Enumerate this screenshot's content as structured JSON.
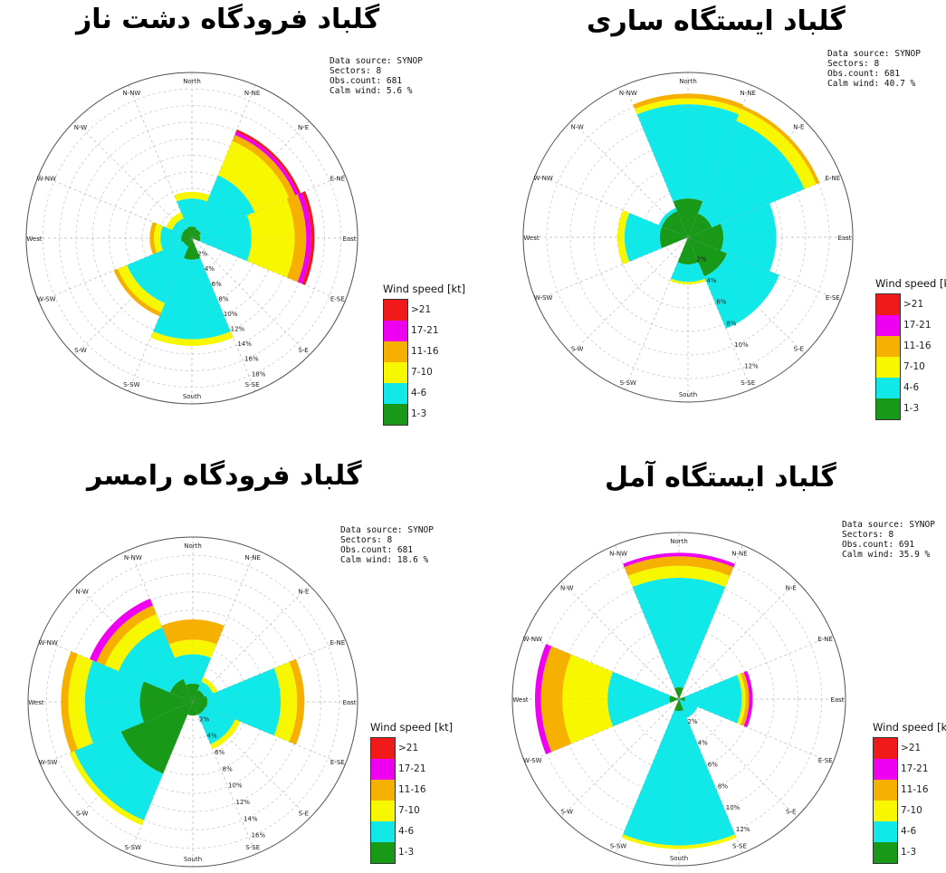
{
  "colors": {
    "1-3": "#189a18",
    "4-6": "#11e8e8",
    "7-10": "#f7f700",
    "11-16": "#f6b000",
    "17-21": "#f000f0",
    ">21": "#f01a1a"
  },
  "legend": {
    "title": "Wind speed [kt]",
    "items": [
      ">21",
      "17-21",
      "11-16",
      "7-10",
      "4-6",
      "1-3"
    ]
  },
  "chart_data": [
    {
      "type": "windrose",
      "title": "گلباد فرودگاه دشت ناز",
      "meta": [
        "Data source: SYNOP",
        "Sectors: 8",
        "Obs.count: 681",
        "Calm wind: 5.6 %"
      ],
      "direction_labels": [
        "North",
        "N-NE",
        "N-E",
        "E-NE",
        "East",
        "E-SE",
        "S-E",
        "S-SE",
        "South",
        "S-SW",
        "S-W",
        "W-SW",
        "West",
        "W-NW",
        "N-W",
        "N-NW"
      ],
      "ring_labels": [
        "2%",
        "4%",
        "6%",
        "8%",
        "10%",
        "12%",
        "14%",
        "16%",
        "18%"
      ],
      "rmax_percent": 20,
      "bins": [
        "1-3",
        "4-6",
        "7-10",
        "11-16",
        "17-21",
        ">21"
      ],
      "sectors": [
        {
          "dir": "North",
          "values": [
            1.4,
            3.4,
            0.8,
            0.0,
            0.0,
            0.0
          ]
        },
        {
          "dir": "N-E",
          "values": [
            1.2,
            7.0,
            4.5,
            0.8,
            0.4,
            0.3
          ]
        },
        {
          "dir": "East",
          "values": [
            1.0,
            6.2,
            5.2,
            1.4,
            0.6,
            0.4
          ]
        },
        {
          "dir": "S-E",
          "values": [
            0.0,
            0.0,
            0.0,
            0.0,
            0.0,
            0.0
          ]
        },
        {
          "dir": "South",
          "values": [
            2.6,
            9.6,
            0.8,
            0.0,
            0.0,
            0.0
          ]
        },
        {
          "dir": "S-W",
          "values": [
            1.1,
            7.4,
            1.2,
            0.5,
            0.0,
            0.0
          ]
        },
        {
          "dir": "West",
          "values": [
            1.3,
            2.5,
            0.8,
            0.5,
            0.0,
            0.0
          ]
        },
        {
          "dir": "N-W",
          "values": [
            1.3,
            1.3,
            0.8,
            0.0,
            0.0,
            0.0
          ]
        }
      ]
    },
    {
      "type": "windrose",
      "title": "گلباد ایستگاه ساری",
      "meta": [
        "Data source: SYNOP",
        "Sectors: 8",
        "Obs.count: 681",
        "Calm wind: 40.7 %"
      ],
      "direction_labels": [
        "North",
        "N-NE",
        "N-E",
        "E-NE",
        "East",
        "E-SE",
        "S-E",
        "S-SE",
        "South",
        "S-SW",
        "S-W",
        "W-SW",
        "West",
        "W-NW",
        "N-W",
        "N-NW"
      ],
      "ring_labels": [
        "2%",
        "4%",
        "6%",
        "8%",
        "10%",
        "12%"
      ],
      "rmax_percent": 14,
      "bins": [
        "1-3",
        "4-6",
        "7-10",
        "11-16",
        "17-21",
        ">21"
      ],
      "sectors": [
        {
          "dir": "North",
          "values": [
            3.3,
            8.0,
            0.5,
            0.4,
            0.0,
            0.0
          ]
        },
        {
          "dir": "N-E",
          "values": [
            2.2,
            8.5,
            1.1,
            0.3,
            0.0,
            0.0
          ]
        },
        {
          "dir": "East",
          "values": [
            3.0,
            4.5,
            0.0,
            0.0,
            0.0,
            0.0
          ]
        },
        {
          "dir": "S-E",
          "values": [
            3.6,
            4.8,
            0.0,
            0.0,
            0.0,
            0.0
          ]
        },
        {
          "dir": "South",
          "values": [
            2.3,
            1.5,
            0.2,
            0.0,
            0.0,
            0.0
          ]
        },
        {
          "dir": "S-W",
          "values": [
            0.0,
            0.0,
            0.0,
            0.0,
            0.0,
            0.0
          ]
        },
        {
          "dir": "West",
          "values": [
            2.4,
            3.0,
            0.6,
            0.0,
            0.0,
            0.0
          ]
        },
        {
          "dir": "N-W",
          "values": [
            2.4,
            0.3,
            0.0,
            0.0,
            0.0,
            0.0
          ]
        }
      ]
    },
    {
      "type": "windrose",
      "title": "گلباد فرودگاه رامسر",
      "meta": [
        "Data source: SYNOP",
        "Sectors: 8",
        "Obs.count: 681",
        "Calm wind: 18.6 %"
      ],
      "direction_labels": [
        "North",
        "N-NE",
        "N-E",
        "E-NE",
        "East",
        "E-SE",
        "S-E",
        "S-SE",
        "South",
        "S-SW",
        "S-W",
        "W-SW",
        "West",
        "W-NW",
        "N-W",
        "N-NW"
      ],
      "ring_labels": [
        "2%",
        "4%",
        "6%",
        "8%",
        "10%",
        "12%",
        "14%",
        "16%"
      ],
      "rmax_percent": 18,
      "bins": [
        "1-3",
        "4-6",
        "7-10",
        "11-16",
        "17-21",
        ">21"
      ],
      "sectors": [
        {
          "dir": "North",
          "values": [
            2.0,
            3.2,
            1.6,
            2.2,
            0.0,
            0.0
          ]
        },
        {
          "dir": "N-E",
          "values": [
            1.4,
            1.0,
            0.5,
            0.0,
            0.0,
            0.0
          ]
        },
        {
          "dir": "East",
          "values": [
            1.6,
            8.0,
            1.8,
            0.8,
            0.0,
            0.0
          ]
        },
        {
          "dir": "S-E",
          "values": [
            1.5,
            3.5,
            0.6,
            0.0,
            0.0,
            0.0
          ]
        },
        {
          "dir": "South",
          "values": [
            1.5,
            0.0,
            0.0,
            0.0,
            0.0,
            0.0
          ]
        },
        {
          "dir": "S-W",
          "values": [
            8.5,
            5.5,
            0.6,
            0.0,
            0.0,
            0.0
          ]
        },
        {
          "dir": "West",
          "values": [
            5.8,
            6.0,
            1.8,
            0.8,
            0.0,
            0.0
          ]
        },
        {
          "dir": "N-W",
          "values": [
            2.7,
            6.1,
            1.6,
            1.0,
            0.8,
            0.0
          ]
        }
      ]
    },
    {
      "type": "windrose",
      "title": "گلباد ایستگاه آمل",
      "meta": [
        "Data source: SYNOP",
        "Sectors: 8",
        "Obs.count: 691",
        "Calm wind: 35.9 %"
      ],
      "direction_labels": [
        "North",
        "N-NE",
        "N-E",
        "E-NE",
        "East",
        "E-SE",
        "S-E",
        "S-SE",
        "South",
        "S-SW",
        "S-W",
        "W-SW",
        "West",
        "W-NW",
        "N-W",
        "N-NW"
      ],
      "ring_labels": [
        "2%",
        "4%",
        "6%",
        "8%",
        "10%",
        "12%"
      ],
      "rmax_percent": 14,
      "bins": [
        "1-3",
        "4-6",
        "7-10",
        "11-16",
        "17-21",
        ">21"
      ],
      "sectors": [
        {
          "dir": "North",
          "values": [
            1.0,
            9.2,
            1.0,
            0.8,
            0.3,
            0.0
          ]
        },
        {
          "dir": "N-E",
          "values": [
            0.0,
            0.0,
            0.0,
            0.0,
            0.0,
            0.0
          ]
        },
        {
          "dir": "East",
          "values": [
            0.5,
            4.8,
            0.3,
            0.3,
            0.3,
            0.0
          ]
        },
        {
          "dir": "S-E",
          "values": [
            0.0,
            1.7,
            0.0,
            0.0,
            0.0,
            0.0
          ]
        },
        {
          "dir": "South",
          "values": [
            1.0,
            11.3,
            0.3,
            0.0,
            0.0,
            0.0
          ]
        },
        {
          "dir": "S-W",
          "values": [
            0.0,
            0.0,
            0.0,
            0.0,
            0.0,
            0.0
          ]
        },
        {
          "dir": "West",
          "values": [
            0.8,
            5.2,
            3.8,
            1.8,
            0.5,
            0.0
          ]
        },
        {
          "dir": "N-W",
          "values": [
            0.0,
            0.0,
            0.0,
            0.0,
            0.0,
            0.0
          ]
        }
      ]
    }
  ]
}
